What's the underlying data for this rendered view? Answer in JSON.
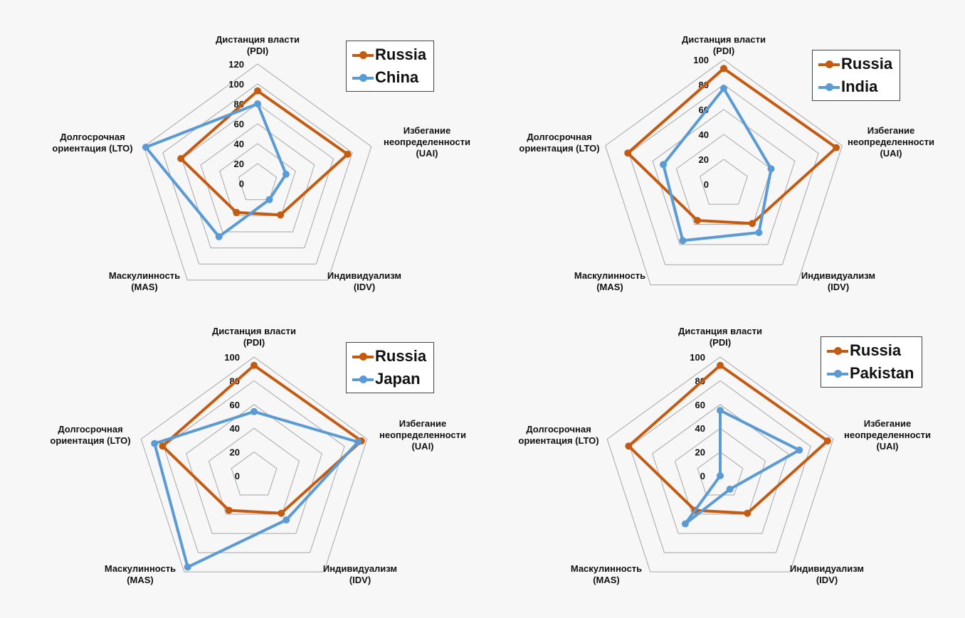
{
  "colors": {
    "russia": "#c55a11",
    "other": "#5b9bd5",
    "grid": "#a6a6a6"
  },
  "axes": [
    [
      "Дистанция власти",
      "(PDI)"
    ],
    [
      "Избегание",
      "неопределенности",
      "(UAI)"
    ],
    [
      "Индивидуализм",
      "(IDV)"
    ],
    [
      "Маскулинность",
      "(MAS)"
    ],
    [
      "Долгосрочная",
      "ориентация (LTO)"
    ]
  ],
  "chart_data": [
    {
      "type": "radar",
      "title": "",
      "categories": [
        "PDI",
        "UAI",
        "IDV",
        "MAS",
        "LTO"
      ],
      "rmax": 120,
      "ticks": [
        0,
        20,
        40,
        60,
        80,
        100,
        120
      ],
      "legend": "top-right",
      "series": [
        {
          "name": "Russia",
          "values": [
            93,
            95,
            39,
            36,
            81
          ]
        },
        {
          "name": "China",
          "values": [
            80,
            30,
            20,
            66,
            118
          ]
        }
      ]
    },
    {
      "type": "radar",
      "title": "",
      "categories": [
        "PDI",
        "UAI",
        "IDV",
        "MAS",
        "LTO"
      ],
      "rmax": 100,
      "ticks": [
        0,
        20,
        40,
        60,
        80,
        100
      ],
      "legend": "top-right",
      "series": [
        {
          "name": "Russia",
          "values": [
            93,
            95,
            39,
            36,
            81
          ]
        },
        {
          "name": "India",
          "values": [
            77,
            40,
            48,
            56,
            51
          ]
        }
      ]
    },
    {
      "type": "radar",
      "title": "",
      "categories": [
        "PDI",
        "UAI",
        "IDV",
        "MAS",
        "LTO"
      ],
      "rmax": 100,
      "ticks": [
        0,
        20,
        40,
        60,
        80,
        100
      ],
      "legend": "top-right",
      "series": [
        {
          "name": "Russia",
          "values": [
            93,
            95,
            39,
            36,
            81
          ]
        },
        {
          "name": "Japan",
          "values": [
            54,
            92,
            46,
            95,
            88
          ]
        }
      ]
    },
    {
      "type": "radar",
      "title": "",
      "categories": [
        "PDI",
        "UAI",
        "IDV",
        "MAS",
        "LTO"
      ],
      "rmax": 100,
      "ticks": [
        0,
        20,
        40,
        60,
        80,
        100
      ],
      "legend": "top-right",
      "series": [
        {
          "name": "Russia",
          "values": [
            93,
            95,
            39,
            36,
            81
          ]
        },
        {
          "name": "Pakistan",
          "values": [
            55,
            70,
            14,
            50,
            0
          ]
        }
      ]
    }
  ]
}
